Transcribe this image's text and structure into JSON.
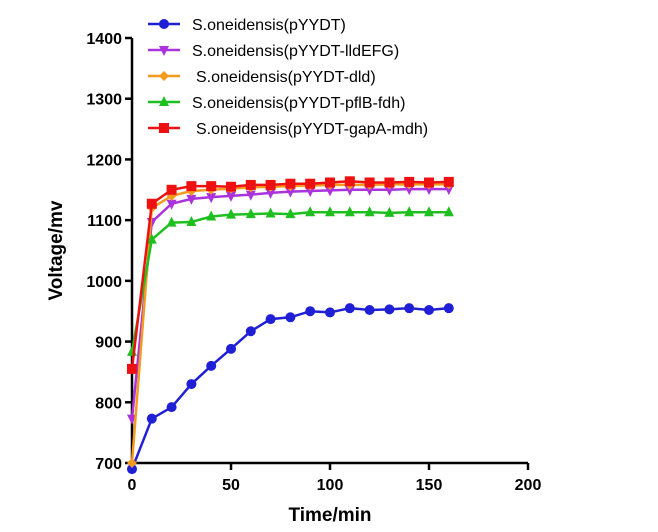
{
  "chart_data": {
    "type": "line",
    "title": "",
    "xlabel": "Time/min",
    "ylabel": "Voltage/mv",
    "xlim": [
      0,
      200
    ],
    "ylim": [
      700,
      1400
    ],
    "xticks": [
      0,
      50,
      100,
      150,
      200
    ],
    "yticks": [
      700,
      800,
      900,
      1000,
      1100,
      1200,
      1300,
      1400
    ],
    "grid": false,
    "legend": "top-center",
    "x": [
      0,
      10,
      20,
      30,
      40,
      50,
      60,
      70,
      80,
      90,
      100,
      110,
      120,
      130,
      140,
      150,
      160
    ],
    "series": [
      {
        "name": "S.oneidensis(pYYDT)",
        "color": "#1f1fd6",
        "marker": "circle",
        "values": [
          690,
          773,
          792,
          830,
          860,
          888,
          917,
          937,
          940,
          950,
          948,
          955,
          952,
          953,
          955,
          952,
          955
        ]
      },
      {
        "name": "S.oneidensis(pYYDT-lldEFG)",
        "color": "#aa33dd",
        "marker": "triangle-down",
        "values": [
          773,
          1097,
          1127,
          1135,
          1138,
          1140,
          1142,
          1145,
          1147,
          1148,
          1149,
          1150,
          1150,
          1150,
          1151,
          1151,
          1151
        ]
      },
      {
        "name": "S.oneidensis(pYYDT-dld)",
        "color": "#f39a1f",
        "marker": "diamond",
        "values": [
          700,
          1120,
          1140,
          1148,
          1150,
          1152,
          1154,
          1155,
          1156,
          1157,
          1158,
          1158,
          1158,
          1159,
          1159,
          1159,
          1159
        ]
      },
      {
        "name": "S.oneidensis(pYYDT-pflB-fdh)",
        "color": "#1fbf1f",
        "marker": "triangle-up",
        "values": [
          883,
          1068,
          1096,
          1097,
          1106,
          1109,
          1110,
          1111,
          1110,
          1113,
          1113,
          1113,
          1113,
          1112,
          1113,
          1113,
          1113
        ]
      },
      {
        "name": "S.oneidensis(pYYDT-gapA-mdh)",
        "color": "#ee1111",
        "marker": "square",
        "values": [
          855,
          1127,
          1150,
          1156,
          1156,
          1155,
          1158,
          1158,
          1160,
          1160,
          1162,
          1164,
          1162,
          1162,
          1163,
          1162,
          1163
        ]
      }
    ]
  }
}
